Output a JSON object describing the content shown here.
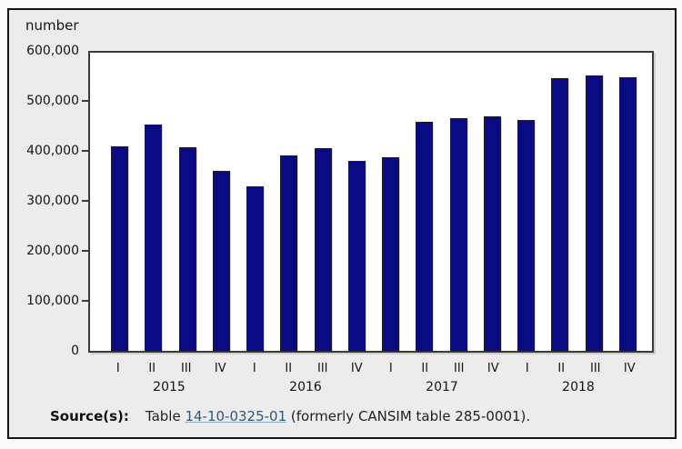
{
  "y_axis": {
    "unit_label": "number",
    "tick_labels_top_down": [
      "600,000",
      "500,000",
      "400,000",
      "300,000",
      "200,000",
      "100,000",
      "0"
    ]
  },
  "source": {
    "label": "Source(s):",
    "before_link": "Table ",
    "link_text": "14-10-0325-01",
    "after_link": " (formerly CANSIM table 285-0001)."
  },
  "colors": {
    "bar_fill": "#0a0a85",
    "bar_border": "#1f1f1f",
    "panel_bg": "#ececec",
    "panel_border": "#141414",
    "plot_border": "#3a3a3a",
    "link_color": "#33567e",
    "text_color": "#141414"
  },
  "chart_data": {
    "type": "bar",
    "title": "",
    "xlabel": "",
    "ylabel": "number",
    "ylim": [
      0,
      600000
    ],
    "ytick_step": 100000,
    "grid": false,
    "legend": false,
    "groups": [
      {
        "year": "2015",
        "quarters": [
          "I",
          "II",
          "III",
          "IV"
        ],
        "values": [
          409000,
          453000,
          408000,
          360000
        ]
      },
      {
        "year": "2016",
        "quarters": [
          "I",
          "II",
          "III",
          "IV"
        ],
        "values": [
          330000,
          392000,
          406000,
          381000
        ]
      },
      {
        "year": "2017",
        "quarters": [
          "I",
          "II",
          "III",
          "IV"
        ],
        "values": [
          388000,
          460000,
          467000,
          470000
        ]
      },
      {
        "year": "2018",
        "quarters": [
          "I",
          "II",
          "III",
          "IV"
        ],
        "values": [
          462000,
          547000,
          552000,
          549000
        ]
      }
    ]
  }
}
